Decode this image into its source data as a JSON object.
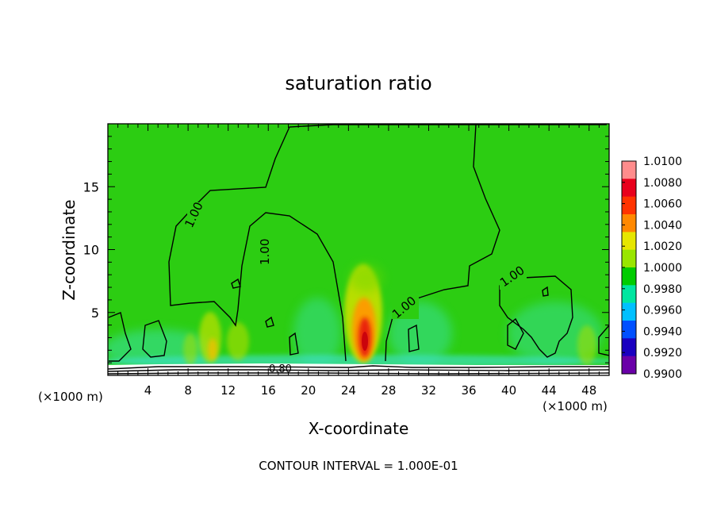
{
  "chart_data": {
    "type": "heatmap",
    "title": "saturation ratio",
    "xlabel": "X-coordinate",
    "ylabel": "Z-coordinate",
    "x_unit": "(×1000 m)",
    "x_unit_right": "(×1000 m)",
    "xlim": [
      0,
      50
    ],
    "ylim": [
      0,
      20
    ],
    "x_ticks": [
      4,
      8,
      12,
      16,
      20,
      24,
      28,
      32,
      36,
      40,
      44,
      48
    ],
    "x_tick_labels": [
      "4",
      "8",
      "12",
      "16",
      "20",
      "24",
      "28",
      "32",
      "36",
      "40",
      "44",
      "48"
    ],
    "y_ticks": [
      5,
      10,
      15
    ],
    "y_tick_labels": [
      "5",
      "10",
      "15"
    ],
    "colorbar": {
      "levels": [
        "1.0100",
        "1.0080",
        "1.0060",
        "1.0040",
        "1.0020",
        "1.0000",
        "0.9980",
        "0.9960",
        "0.9940",
        "0.9920",
        "0.9900"
      ],
      "colors": [
        "#ff8c8c",
        "#e8001c",
        "#ff3300",
        "#ff8800",
        "#e6e600",
        "#99e600",
        "#00cc00",
        "#00e6a0",
        "#00c0ff",
        "#0050ff",
        "#1a00c0",
        "#6a00a8"
      ]
    },
    "contour_labels": [
      "1.00",
      "1.00",
      "1.00",
      "1.00",
      "0.80"
    ],
    "contour_interval_text": "CONTOUR INTERVAL = 1.000E-01"
  }
}
